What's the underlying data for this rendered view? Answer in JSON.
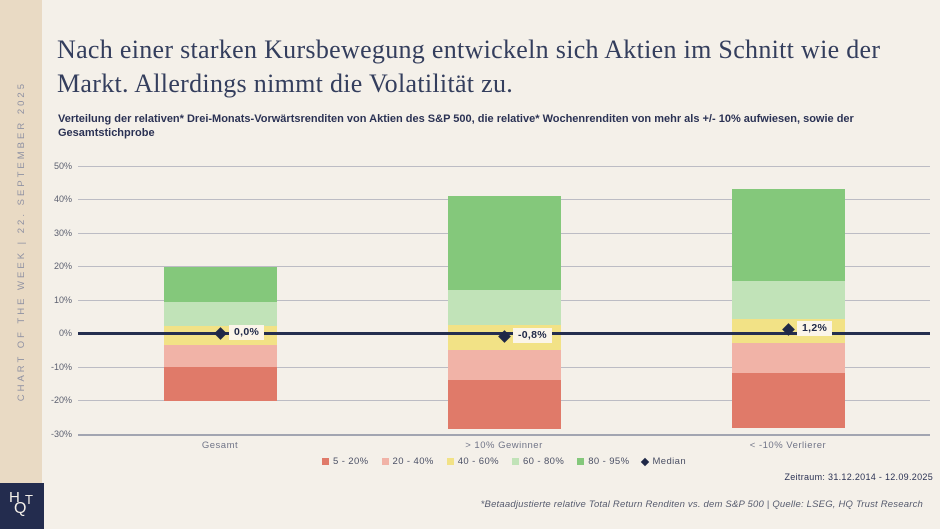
{
  "sidebar": {
    "vertical_text": "CHART OF THE WEEK | 22. SEPTEMBER 2025",
    "logo": {
      "h": "H",
      "q": "Q",
      "t": "T"
    }
  },
  "header": {
    "title": "Nach einer starken Kursbewegung entwickeln sich Aktien im Schnitt wie der Markt. Allerdings nimmt die Volatilität zu.",
    "subtitle": "Verteilung der relativen* Drei-Monats-Vorwärtsrenditen von Aktien des S&P 500, die relative* Wochenrenditen von mehr als +/- 10% aufwiesen, sowie der Gesamtstichprobe"
  },
  "colors": {
    "background": "#f4f0e9",
    "sidebar": "#e9dac4",
    "navy": "#242e4f",
    "grid": "#bcbcc4",
    "median_label_bg": "#fbf5e9"
  },
  "chart_data": {
    "type": "bar",
    "subtype": "floating-stacked-percentile-bands",
    "title": "",
    "xlabel": "",
    "ylabel": "",
    "ylim": [
      -30,
      50
    ],
    "grid": true,
    "legend_position": "bottom-center",
    "categories": [
      {
        "label": "Gesamt",
        "p5": -20.0,
        "p20": -10.0,
        "p40": -3.4,
        "p60": 2.3,
        "p80": 9.5,
        "p95": 20.0,
        "median": 0.0,
        "median_label": "0,0%"
      },
      {
        "label": "> 10% Gewinner",
        "p5": -28.6,
        "p20": -13.8,
        "p40": -4.9,
        "p60": 2.4,
        "p80": 13.0,
        "p95": 41.1,
        "median": -0.8,
        "median_label": "-0,8%"
      },
      {
        "label": "< -10% Verlierer",
        "p5": -28.3,
        "p20": -11.7,
        "p40": -2.7,
        "p60": 4.2,
        "p80": 15.8,
        "p95": 43.1,
        "median": 1.2,
        "median_label": "1,2%"
      }
    ],
    "bands": [
      {
        "label": "5 - 20%",
        "from": "p5",
        "to": "p20",
        "color": "#e07a69"
      },
      {
        "label": "20 - 40%",
        "from": "p20",
        "to": "p40",
        "color": "#f1b3a7"
      },
      {
        "label": "40 - 60%",
        "from": "p40",
        "to": "p60",
        "color": "#f2e286"
      },
      {
        "label": "60 - 80%",
        "from": "p60",
        "to": "p80",
        "color": "#c1e3b8"
      },
      {
        "label": "80 - 95%",
        "from": "p80",
        "to": "p95",
        "color": "#84c87b"
      }
    ],
    "median_legend_label": "Median",
    "yticks": [
      {
        "value": 50,
        "label": "50%"
      },
      {
        "value": 40,
        "label": "40%"
      },
      {
        "value": 30,
        "label": "30%"
      },
      {
        "value": 20,
        "label": "20%"
      },
      {
        "value": 10,
        "label": "10%"
      },
      {
        "value": 0,
        "label": "0%"
      },
      {
        "value": -10,
        "label": "-10%"
      },
      {
        "value": -20,
        "label": "-20%"
      },
      {
        "value": -30,
        "label": "-30%"
      }
    ]
  },
  "footer": {
    "zeitraum": "Zeitraum: 31.12.2014 - 12.09.2025",
    "footnote": "*Betaadjustierte relative Total Return Renditen vs. dem S&P 500 | Quelle: LSEG, HQ Trust Research"
  }
}
